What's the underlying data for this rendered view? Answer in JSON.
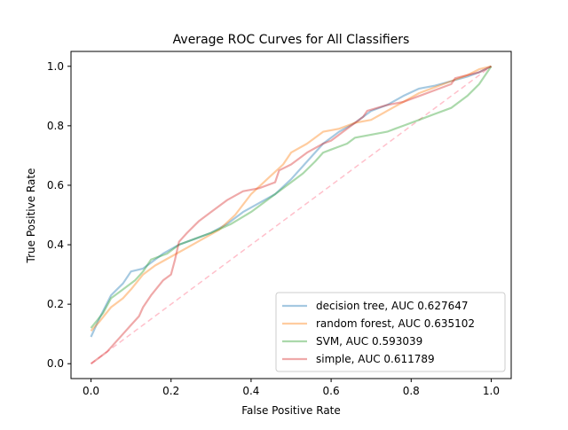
{
  "chart_data": {
    "type": "line",
    "title": "Average ROC Curves for All Classifiers",
    "xlabel": "False Positive Rate",
    "ylabel": "True Positive Rate",
    "xlim": [
      -0.05,
      1.05
    ],
    "ylim": [
      -0.05,
      1.05
    ],
    "xticks": [
      0.0,
      0.2,
      0.4,
      0.6,
      0.8,
      1.0
    ],
    "yticks": [
      0.0,
      0.2,
      0.4,
      0.6,
      0.8,
      1.0
    ],
    "xtick_labels": [
      "0.0",
      "0.2",
      "0.4",
      "0.6",
      "0.8",
      "1.0"
    ],
    "ytick_labels": [
      "0.0",
      "0.2",
      "0.4",
      "0.6",
      "0.8",
      "1.0"
    ],
    "grid": false,
    "legend_position": "lower-right",
    "diagonal": {
      "x": [
        0,
        1
      ],
      "y": [
        0,
        1
      ],
      "color": "#ffc0cb",
      "style": "dashed"
    },
    "series": [
      {
        "name": "decision tree, AUC 0.627647",
        "color": "#1f77b4",
        "x": [
          0.0,
          0.02,
          0.05,
          0.08,
          0.1,
          0.13,
          0.15,
          0.18,
          0.22,
          0.26,
          0.3,
          0.34,
          0.38,
          0.42,
          0.46,
          0.5,
          0.54,
          0.58,
          0.62,
          0.66,
          0.7,
          0.74,
          0.78,
          0.82,
          0.86,
          0.9,
          0.94,
          0.97,
          1.0
        ],
        "y": [
          0.09,
          0.15,
          0.23,
          0.27,
          0.31,
          0.32,
          0.34,
          0.37,
          0.4,
          0.42,
          0.44,
          0.47,
          0.51,
          0.54,
          0.57,
          0.62,
          0.68,
          0.74,
          0.78,
          0.81,
          0.85,
          0.87,
          0.9,
          0.925,
          0.935,
          0.95,
          0.965,
          0.98,
          1.0
        ]
      },
      {
        "name": "random forest, AUC 0.635102",
        "color": "#ff7f0e",
        "x": [
          0.0,
          0.02,
          0.05,
          0.08,
          0.1,
          0.13,
          0.16,
          0.2,
          0.24,
          0.28,
          0.32,
          0.36,
          0.4,
          0.44,
          0.48,
          0.5,
          0.54,
          0.58,
          0.62,
          0.66,
          0.7,
          0.74,
          0.78,
          0.82,
          0.86,
          0.9,
          0.94,
          0.97,
          1.0
        ],
        "y": [
          0.11,
          0.14,
          0.19,
          0.22,
          0.25,
          0.3,
          0.33,
          0.36,
          0.39,
          0.42,
          0.45,
          0.5,
          0.57,
          0.62,
          0.67,
          0.71,
          0.74,
          0.78,
          0.79,
          0.81,
          0.82,
          0.85,
          0.88,
          0.91,
          0.93,
          0.95,
          0.97,
          0.99,
          1.0
        ]
      },
      {
        "name": "SVM, AUC 0.593039",
        "color": "#2ca02c",
        "x": [
          0.0,
          0.03,
          0.05,
          0.08,
          0.11,
          0.13,
          0.15,
          0.19,
          0.22,
          0.26,
          0.3,
          0.35,
          0.4,
          0.45,
          0.5,
          0.53,
          0.56,
          0.58,
          0.6,
          0.64,
          0.66,
          0.7,
          0.74,
          0.76,
          0.78,
          0.82,
          0.86,
          0.9,
          0.94,
          0.97,
          1.0
        ],
        "y": [
          0.12,
          0.17,
          0.22,
          0.25,
          0.28,
          0.31,
          0.35,
          0.37,
          0.4,
          0.42,
          0.44,
          0.47,
          0.51,
          0.56,
          0.61,
          0.64,
          0.68,
          0.71,
          0.72,
          0.74,
          0.76,
          0.77,
          0.78,
          0.79,
          0.8,
          0.82,
          0.84,
          0.86,
          0.9,
          0.94,
          1.0
        ]
      },
      {
        "name": "simple, AUC 0.611789",
        "color": "#d62728",
        "x": [
          0.0,
          0.02,
          0.04,
          0.06,
          0.08,
          0.1,
          0.12,
          0.13,
          0.15,
          0.18,
          0.2,
          0.21,
          0.22,
          0.24,
          0.27,
          0.3,
          0.34,
          0.38,
          0.42,
          0.46,
          0.47,
          0.5,
          0.54,
          0.58,
          0.6,
          0.62,
          0.65,
          0.68,
          0.69,
          0.74,
          0.78,
          0.82,
          0.86,
          0.9,
          0.91,
          0.94,
          0.97,
          1.0
        ],
        "y": [
          0.0,
          0.02,
          0.04,
          0.07,
          0.1,
          0.13,
          0.16,
          0.19,
          0.23,
          0.28,
          0.3,
          0.35,
          0.41,
          0.44,
          0.48,
          0.51,
          0.55,
          0.58,
          0.59,
          0.61,
          0.65,
          0.67,
          0.71,
          0.74,
          0.75,
          0.77,
          0.8,
          0.83,
          0.85,
          0.87,
          0.88,
          0.9,
          0.92,
          0.94,
          0.96,
          0.97,
          0.98,
          1.0
        ]
      }
    ]
  }
}
